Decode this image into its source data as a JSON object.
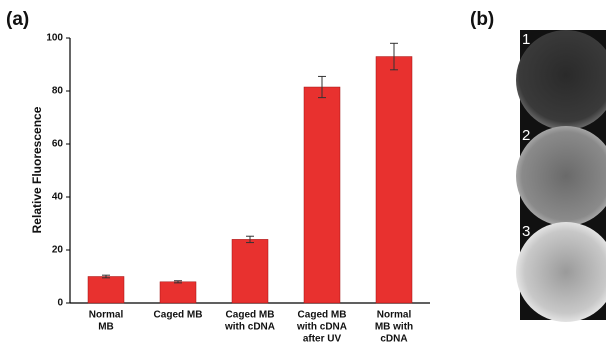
{
  "chart_data": {
    "type": "bar",
    "panel_label": "(a)",
    "y_label": "Relative Fluorescence",
    "categories": [
      [
        "Normal",
        "MB"
      ],
      [
        "Caged MB"
      ],
      [
        "Caged MB",
        "with cDNA"
      ],
      [
        "Caged MB",
        "with cDNA",
        "after UV"
      ],
      [
        "Normal",
        "MB with",
        "cDNA"
      ]
    ],
    "values": [
      10,
      8,
      24,
      81.5,
      93
    ],
    "errors": [
      0.5,
      0.4,
      1.2,
      4,
      5
    ],
    "color": "#e8312f",
    "ylim": [
      0,
      100
    ],
    "yticks": [
      0,
      20,
      40,
      60,
      80,
      100
    ]
  },
  "panel_b": {
    "label": "(b)",
    "wells": [
      "1",
      "2",
      "3"
    ]
  }
}
